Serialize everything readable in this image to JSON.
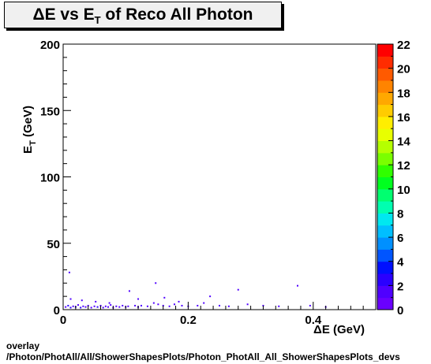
{
  "chart_data": {
    "type": "heatmap",
    "title": {
      "prefix": "ΔE vs E",
      "sub": "T",
      "suffix": " of Reco All Photon"
    },
    "xlabel": "ΔE (GeV)",
    "ylabel": {
      "main": "E",
      "sub": "T",
      "unit": " (GeV)"
    },
    "xlim": [
      0,
      0.5
    ],
    "ylim": [
      0,
      200
    ],
    "x_ticks": [
      {
        "value": 0,
        "label": "0"
      },
      {
        "value": 0.2,
        "label": "0.2"
      },
      {
        "value": 0.4,
        "label": "0.4"
      }
    ],
    "y_ticks": [
      {
        "value": 0,
        "label": "0"
      },
      {
        "value": 50,
        "label": "50"
      },
      {
        "value": 100,
        "label": "100"
      },
      {
        "value": 150,
        "label": "150"
      },
      {
        "value": 200,
        "label": "200"
      }
    ],
    "colorbar": {
      "range": [
        0,
        22
      ],
      "ticks": [
        "0",
        "2",
        "4",
        "6",
        "8",
        "10",
        "12",
        "14",
        "16",
        "18",
        "20",
        "22"
      ],
      "colors": [
        "#6a00ff",
        "#4f00ff",
        "#2a00ff",
        "#0010ff",
        "#0055ff",
        "#0090ff",
        "#00bfff",
        "#00e8f0",
        "#00ffb0",
        "#00ff70",
        "#00ff20",
        "#30ff00",
        "#7aff00",
        "#b5ff00",
        "#e8ff00",
        "#ffee00",
        "#ffcc00",
        "#ffa800",
        "#ff8400",
        "#ff5a00",
        "#ff2c00",
        "#ff0000"
      ]
    },
    "points": [
      {
        "x": 0.004,
        "y": 2,
        "z": 1
      },
      {
        "x": 0.008,
        "y": 3,
        "z": 2
      },
      {
        "x": 0.012,
        "y": 1.5,
        "z": 2
      },
      {
        "x": 0.016,
        "y": 2.5,
        "z": 1
      },
      {
        "x": 0.02,
        "y": 2,
        "z": 2
      },
      {
        "x": 0.024,
        "y": 3.5,
        "z": 1
      },
      {
        "x": 0.028,
        "y": 1.5,
        "z": 2
      },
      {
        "x": 0.032,
        "y": 2.5,
        "z": 1
      },
      {
        "x": 0.036,
        "y": 2,
        "z": 1
      },
      {
        "x": 0.04,
        "y": 3,
        "z": 1
      },
      {
        "x": 0.045,
        "y": 1.5,
        "z": 1
      },
      {
        "x": 0.05,
        "y": 2.5,
        "z": 1
      },
      {
        "x": 0.055,
        "y": 2,
        "z": 2
      },
      {
        "x": 0.06,
        "y": 3,
        "z": 1
      },
      {
        "x": 0.064,
        "y": 1.5,
        "z": 1
      },
      {
        "x": 0.068,
        "y": 2.5,
        "z": 1
      },
      {
        "x": 0.072,
        "y": 2,
        "z": 1
      },
      {
        "x": 0.076,
        "y": 3.5,
        "z": 1
      },
      {
        "x": 0.08,
        "y": 1.5,
        "z": 1
      },
      {
        "x": 0.085,
        "y": 2.5,
        "z": 1
      },
      {
        "x": 0.09,
        "y": 2,
        "z": 1
      },
      {
        "x": 0.095,
        "y": 3,
        "z": 1
      },
      {
        "x": 0.1,
        "y": 2,
        "z": 1
      },
      {
        "x": 0.104,
        "y": 2.5,
        "z": 1
      },
      {
        "x": 0.115,
        "y": 3,
        "z": 1
      },
      {
        "x": 0.12,
        "y": 2,
        "z": 1
      },
      {
        "x": 0.125,
        "y": 3,
        "z": 1
      },
      {
        "x": 0.135,
        "y": 2.5,
        "z": 1
      },
      {
        "x": 0.145,
        "y": 5,
        "z": 1
      },
      {
        "x": 0.148,
        "y": 20,
        "z": 1
      },
      {
        "x": 0.152,
        "y": 4,
        "z": 1
      },
      {
        "x": 0.16,
        "y": 3,
        "z": 1
      },
      {
        "x": 0.17,
        "y": 2.5,
        "z": 1
      },
      {
        "x": 0.178,
        "y": 4,
        "z": 1
      },
      {
        "x": 0.185,
        "y": 6,
        "z": 1
      },
      {
        "x": 0.19,
        "y": 3,
        "z": 1
      },
      {
        "x": 0.2,
        "y": 2.5,
        "z": 1
      },
      {
        "x": 0.215,
        "y": 3,
        "z": 1
      },
      {
        "x": 0.225,
        "y": 5,
        "z": 1
      },
      {
        "x": 0.235,
        "y": 10,
        "z": 1
      },
      {
        "x": 0.25,
        "y": 3,
        "z": 1
      },
      {
        "x": 0.265,
        "y": 2.5,
        "z": 1
      },
      {
        "x": 0.28,
        "y": 15,
        "z": 1
      },
      {
        "x": 0.295,
        "y": 4,
        "z": 1
      },
      {
        "x": 0.32,
        "y": 3,
        "z": 1
      },
      {
        "x": 0.345,
        "y": 2.5,
        "z": 1
      },
      {
        "x": 0.375,
        "y": 18,
        "z": 1
      },
      {
        "x": 0.395,
        "y": 3,
        "z": 1
      },
      {
        "x": 0.01,
        "y": 28,
        "z": 1
      },
      {
        "x": 0.012,
        "y": 8,
        "z": 1
      },
      {
        "x": 0.03,
        "y": 7,
        "z": 1
      },
      {
        "x": 0.052,
        "y": 6,
        "z": 1
      },
      {
        "x": 0.074,
        "y": 5,
        "z": 1
      },
      {
        "x": 0.106,
        "y": 14,
        "z": 1
      },
      {
        "x": 0.12,
        "y": 8,
        "z": 1
      },
      {
        "x": 0.162,
        "y": 9,
        "z": 1
      },
      {
        "x": 0.42,
        "y": 2,
        "z": 1
      }
    ]
  },
  "footer": {
    "line1": "overlay",
    "line2": "/Photon/PhotAll/All/ShowerShapesPlots/Photon_PhotAll_All_ShowerShapesPlots_devs"
  }
}
